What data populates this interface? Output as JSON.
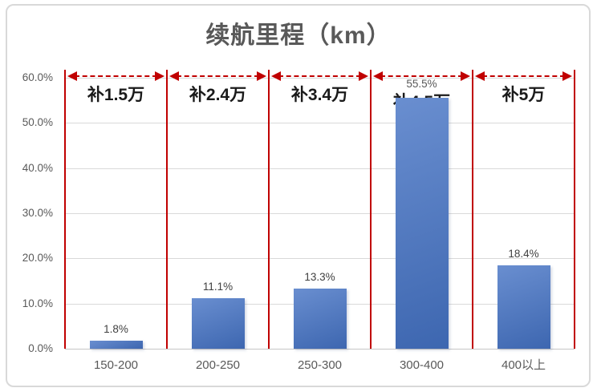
{
  "title": "续航里程（km）",
  "chart_data": {
    "type": "bar",
    "title": "续航里程（km）",
    "xlabel": "",
    "ylabel": "",
    "categories": [
      "150-200",
      "200-250",
      "250-300",
      "300-400",
      "400以上"
    ],
    "values": [
      1.8,
      11.1,
      13.3,
      55.5,
      18.4
    ],
    "value_labels": [
      "1.8%",
      "11.1%",
      "13.3%",
      "55.5%",
      "18.4%"
    ],
    "subsidy_labels": [
      "补1.5万",
      "补2.4万",
      "补3.4万",
      "补4.5万",
      "补5万"
    ],
    "y_ticks": [
      "60.0%",
      "50.0%",
      "40.0%",
      "30.0%",
      "20.0%",
      "10.0%",
      "0.0%"
    ],
    "ylim": [
      0,
      60
    ],
    "grid": true,
    "legend": "none",
    "bar_color": "#4472C4",
    "annotation_color": "#C00000",
    "title_color": "#595959",
    "axis_text_color": "#595959"
  }
}
